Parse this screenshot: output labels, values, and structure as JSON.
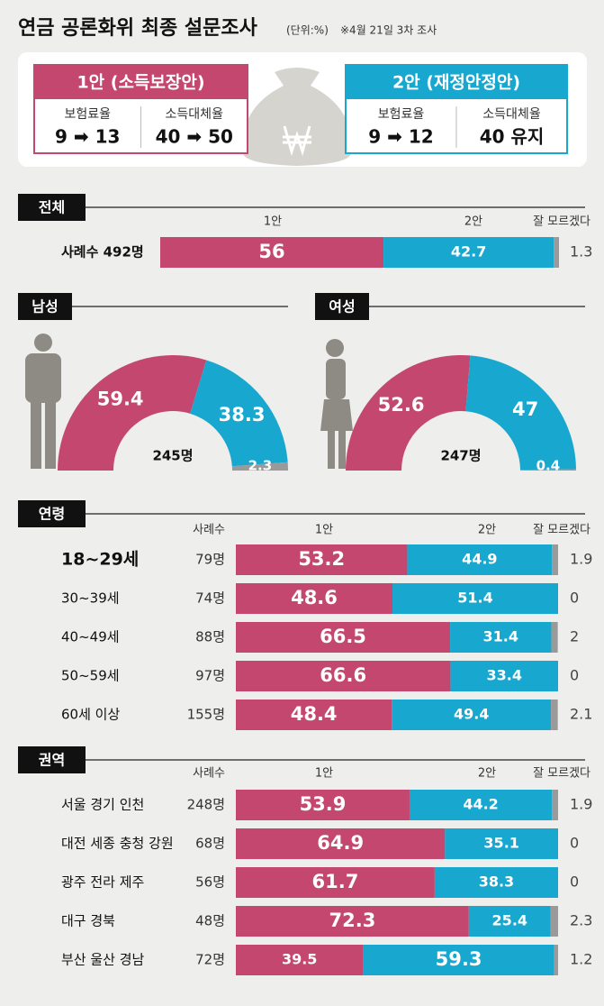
{
  "title": "연금 공론화위 최종 설문조사",
  "unit_note": "(단위:%)",
  "date_note": "※4월 21일 3차 조사",
  "plans": [
    {
      "title": "1안 (소득보장안)",
      "color": "#c4476f",
      "items": [
        {
          "label": "보험료율",
          "value": "9 ➡ 13"
        },
        {
          "label": "소득대체율",
          "value": "40 ➡ 50"
        }
      ]
    },
    {
      "title": "2안 (재정안정안)",
      "color": "#17a7cf",
      "items": [
        {
          "label": "보험료율",
          "value": "9 ➡ 12"
        },
        {
          "label": "소득대체율",
          "value": "40 유지"
        }
      ]
    }
  ],
  "chart_data": [
    {
      "type": "stacked-bar",
      "title": "전체",
      "categories": [
        "사례수 492명"
      ],
      "series": [
        {
          "name": "1안",
          "color": "#c4476f",
          "values": [
            56
          ]
        },
        {
          "name": "2안",
          "color": "#17a7cf",
          "values": [
            42.7
          ]
        },
        {
          "name": "잘 모르겠다",
          "color": "#9a9a9a",
          "values": [
            1.3
          ]
        }
      ]
    },
    {
      "type": "half-donut",
      "title": "남성",
      "center_label": "245명",
      "values": [
        59.4,
        38.3,
        2.3
      ],
      "colors": [
        "#c4476f",
        "#17a7cf",
        "#9a9a9a"
      ]
    },
    {
      "type": "half-donut",
      "title": "여성",
      "center_label": "247명",
      "values": [
        52.6,
        47,
        0.4
      ],
      "colors": [
        "#c4476f",
        "#17a7cf",
        "#9a9a9a"
      ]
    },
    {
      "type": "stacked-bar",
      "title": "연령",
      "sample_header": "사례수",
      "categories": [
        "18~29세",
        "30~39세",
        "40~49세",
        "50~59세",
        "60세 이상"
      ],
      "samples": [
        "79명",
        "74명",
        "88명",
        "97명",
        "155명"
      ],
      "series": [
        {
          "name": "1안",
          "color": "#c4476f",
          "values": [
            53.2,
            48.6,
            66.5,
            66.6,
            48.4
          ]
        },
        {
          "name": "2안",
          "color": "#17a7cf",
          "values": [
            44.9,
            51.4,
            31.4,
            33.4,
            49.4
          ]
        },
        {
          "name": "잘 모르겠다",
          "color": "#9a9a9a",
          "values": [
            1.9,
            0,
            2,
            0,
            2.1
          ]
        }
      ]
    },
    {
      "type": "stacked-bar",
      "title": "권역",
      "sample_header": "사례수",
      "categories": [
        "서울 경기 인천",
        "대전 세종 충청 강원",
        "광주 전라 제주",
        "대구 경북",
        "부산 울산 경남"
      ],
      "samples": [
        "248명",
        "68명",
        "56명",
        "48명",
        "72명"
      ],
      "series": [
        {
          "name": "1안",
          "color": "#c4476f",
          "values": [
            53.9,
            64.9,
            61.7,
            72.3,
            39.5
          ]
        },
        {
          "name": "2안",
          "color": "#17a7cf",
          "values": [
            44.2,
            35.1,
            38.3,
            25.4,
            59.3
          ]
        },
        {
          "name": "잘 모르겠다",
          "color": "#9a9a9a",
          "values": [
            1.9,
            0,
            0,
            2.3,
            1.2
          ]
        }
      ]
    }
  ]
}
